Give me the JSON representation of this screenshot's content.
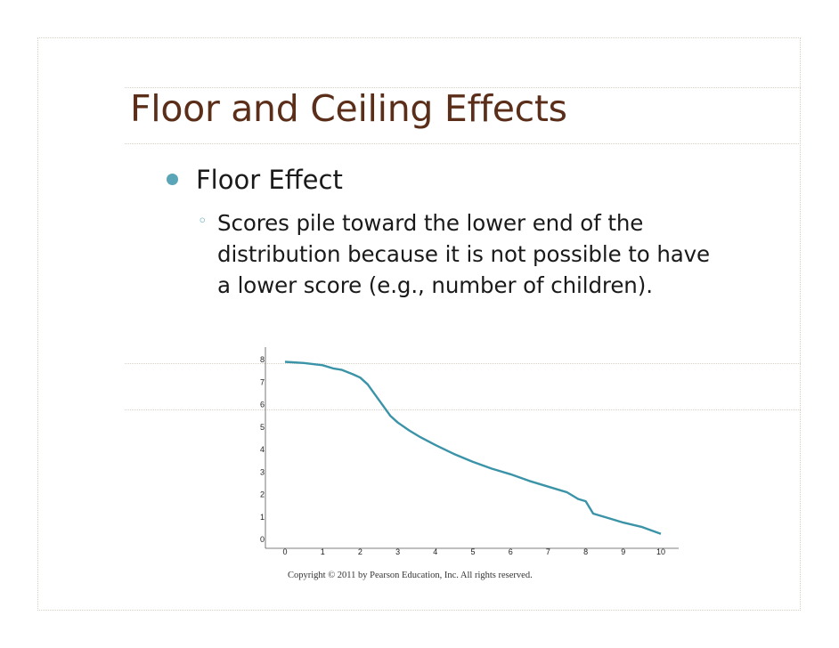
{
  "slide": {
    "title": "Floor and Ceiling Effects",
    "bullet": "Floor Effect",
    "sub_marker": "◦",
    "sub_lines": [
      "Scores pile toward the lower end of the",
      "distribution because it is not possible to have",
      "a lower score (e.g., number of children)."
    ],
    "copyright": "Copyright © 2011 by Pearson Education, Inc. All rights reserved.",
    "colors": {
      "title": "#5b2e1a",
      "accent": "#5aa5b7",
      "line": "#3b93a8",
      "band": "#f6f1e4"
    }
  },
  "chart_data": {
    "type": "line",
    "x_ticks": [
      "0",
      "1",
      "2",
      "3",
      "4",
      "5",
      "6",
      "7",
      "8",
      "9",
      "10"
    ],
    "y_ticks": [
      "0",
      "1",
      "2",
      "3",
      "4",
      "5",
      "6",
      "7",
      "8"
    ],
    "xlim": [
      0,
      10
    ],
    "ylim": [
      0,
      8
    ],
    "grid": false,
    "series": [
      {
        "x": [
          0,
          0.5,
          1,
          1.3,
          1.5,
          1.8,
          2,
          2.2,
          2.5,
          2.8,
          3,
          3.3,
          3.6,
          4,
          4.5,
          5,
          5.5,
          6,
          6.5,
          7,
          7.5,
          7.8,
          8,
          8.2,
          8.6,
          9,
          9.5,
          10
        ],
        "y": [
          7.9,
          7.85,
          7.75,
          7.6,
          7.55,
          7.35,
          7.2,
          6.9,
          6.2,
          5.5,
          5.2,
          4.85,
          4.55,
          4.2,
          3.8,
          3.45,
          3.15,
          2.9,
          2.6,
          2.35,
          2.1,
          1.8,
          1.7,
          1.15,
          0.95,
          0.75,
          0.55,
          0.25
        ]
      }
    ]
  }
}
